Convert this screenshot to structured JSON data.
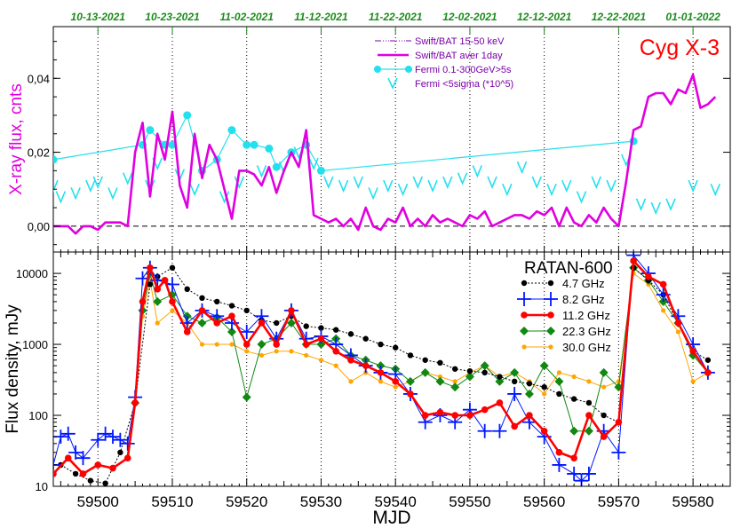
{
  "colors": {
    "bat": "#7a00a8",
    "bat_avg": "#e000e0",
    "fermi": "#22e0ee",
    "ylabel_top": "#e000e0",
    "title": "#ff0000",
    "dates": "#1a8c1a",
    "f47": "#000000",
    "f82": "#0018ff",
    "f112": "#ff0000",
    "f223": "#118811",
    "f300": "#ffa500"
  },
  "chart_data": [
    {
      "type": "scatter",
      "title": "Cyg X-3",
      "ylabel": "X-ray flux, cnts",
      "ylim": [
        -0.007,
        0.054
      ],
      "xlim": [
        59494,
        59585
      ],
      "top_axis_ticks": [
        {
          "x": 59500,
          "label": "10-13-2021"
        },
        {
          "x": 59510,
          "label": "10-23-2021"
        },
        {
          "x": 59520,
          "label": "11-02-2021"
        },
        {
          "x": 59530,
          "label": "11-12-2021"
        },
        {
          "x": 59540,
          "label": "11-22-2021"
        },
        {
          "x": 59550,
          "label": "12-02-2021"
        },
        {
          "x": 59560,
          "label": "12-12-2021"
        },
        {
          "x": 59570,
          "label": "12-22-2021"
        },
        {
          "x": 59580,
          "label": "01-01-2022"
        }
      ],
      "yticks": [
        {
          "v": 0.0,
          "label": "0,00"
        },
        {
          "v": 0.02,
          "label": "0,02"
        },
        {
          "v": 0.04,
          "label": "0,04"
        }
      ],
      "legend": [
        "Swift/BAT 15-50 keV",
        "Swift/BAT aver 1day",
        "Fermi 0.1-300GeV>5s",
        "Fermi <5sigma (*10^5)"
      ],
      "series": [
        {
          "name": "Swift/BAT aver 1day",
          "x": [
            59494,
            59495,
            59496,
            59497,
            59498,
            59499,
            59500,
            59501,
            59502,
            59503,
            59504,
            59505,
            59506,
            59507,
            59508,
            59509,
            59510,
            59511,
            59512,
            59513,
            59514,
            59515,
            59516,
            59517,
            59518,
            59519,
            59520,
            59521,
            59522,
            59523,
            59524,
            59525,
            59526,
            59527,
            59528,
            59529,
            59530,
            59531,
            59532,
            59533,
            59534,
            59535,
            59536,
            59537,
            59538,
            59539,
            59540,
            59541,
            59542,
            59543,
            59544,
            59545,
            59546,
            59547,
            59548,
            59549,
            59550,
            59551,
            59552,
            59553,
            59554,
            59555,
            59556,
            59557,
            59558,
            59559,
            59560,
            59561,
            59562,
            59563,
            59564,
            59565,
            59566,
            59567,
            59568,
            59569,
            59570,
            59571,
            59572,
            59573,
            59574,
            59575,
            59576,
            59577,
            59578,
            59579,
            59580,
            59581,
            59582,
            59583
          ],
          "values": [
            0.0,
            0.0,
            0.0,
            -0.002,
            0.0,
            0.0,
            -0.001,
            0.001,
            0.001,
            0.001,
            0.0,
            0.02,
            0.028,
            0.008,
            0.025,
            0.018,
            0.031,
            0.011,
            0.005,
            0.025,
            0.013,
            0.022,
            0.018,
            0.01,
            0.002,
            0.015,
            0.015,
            0.014,
            0.011,
            0.016,
            0.009,
            0.015,
            0.02,
            0.016,
            0.026,
            0.003,
            0.002,
            0.001,
            0.002,
            0.0,
            0.002,
            -0.001,
            0.005,
            0.0,
            -0.001,
            0.002,
            0.001,
            0.005,
            0.0,
            0.002,
            0.0,
            0.003,
            0.001,
            0.002,
            0.001,
            0.0,
            0.003,
            0.002,
            0.004,
            0.0,
            0.001,
            0.002,
            0.003,
            0.003,
            0.002,
            0.004,
            0.003,
            0.005,
            0.0,
            0.005,
            0.001,
            0.0,
            0.003,
            0.001,
            0.005,
            0.002,
            0.0,
            0.012,
            0.026,
            0.027,
            0.035,
            0.036,
            0.036,
            0.033,
            0.037,
            0.036,
            0.041,
            0.032,
            0.033,
            0.035
          ]
        },
        {
          "name": "Fermi 0.1-300GeV>5s",
          "x": [
            59494,
            59506,
            59507,
            59509,
            59510,
            59512,
            59514,
            59516,
            59518,
            59520,
            59521,
            59523,
            59524,
            59526,
            59528,
            59530,
            59572
          ],
          "values": [
            0.018,
            0.022,
            0.026,
            0.022,
            0.022,
            0.03,
            0.015,
            0.018,
            0.026,
            0.022,
            0.022,
            0.021,
            0.016,
            0.02,
            0.022,
            0.015,
            0.023
          ]
        },
        {
          "name": "Fermi <5sigma (*10^5)",
          "x": [
            59494,
            59495,
            59497,
            59499,
            59500,
            59502,
            59504,
            59507,
            59508,
            59511,
            59513,
            59517,
            59519,
            59522,
            59525,
            59527,
            59529,
            59531,
            59533,
            59535,
            59537,
            59539,
            59541,
            59543,
            59545,
            59547,
            59549,
            59551,
            59553,
            59555,
            59557,
            59559,
            59561,
            59563,
            59565,
            59567,
            59569,
            59571,
            59573,
            59575,
            59577,
            59580,
            59583
          ],
          "values": [
            0.011,
            0.008,
            0.009,
            0.011,
            0.012,
            0.009,
            0.013,
            0.011,
            0.017,
            0.014,
            0.01,
            0.008,
            0.012,
            0.015,
            0.016,
            0.02,
            0.017,
            0.012,
            0.011,
            0.012,
            0.009,
            0.011,
            0.01,
            0.012,
            0.011,
            0.012,
            0.013,
            0.015,
            0.012,
            0.01,
            0.016,
            0.012,
            0.01,
            0.011,
            0.008,
            0.012,
            0.011,
            0.018,
            0.006,
            0.005,
            0.006,
            0.011,
            0.01
          ]
        }
      ]
    },
    {
      "type": "line",
      "title": "RATAN-600",
      "xlabel": "MJD",
      "ylabel": "Flux density, mJy",
      "yscale": "log",
      "ylim": [
        10,
        20000
      ],
      "xlim": [
        59494,
        59585
      ],
      "xticks": [
        59500,
        59510,
        59520,
        59530,
        59540,
        59550,
        59560,
        59570,
        59580
      ],
      "yticks": [
        {
          "v": 10,
          "label": "10"
        },
        {
          "v": 100,
          "label": "100"
        },
        {
          "v": 1000,
          "label": "1000"
        },
        {
          "v": 10000,
          "label": "10000"
        }
      ],
      "legend_position": "top-right",
      "series": [
        {
          "name": "4.7 GHz",
          "x": [
            59495,
            59497,
            59499,
            59501,
            59503,
            59505,
            59507,
            59508,
            59510,
            59512,
            59514,
            59516,
            59518,
            59520,
            59522,
            59524,
            59526,
            59528,
            59530,
            59532,
            59534,
            59536,
            59538,
            59540,
            59542,
            59544,
            59546,
            59548,
            59550,
            59552,
            59554,
            59556,
            59558,
            59560,
            59562,
            59564,
            59566,
            59568,
            59570,
            59572,
            59574,
            59576,
            59578,
            59580,
            59582
          ],
          "values": [
            20,
            15,
            12,
            11,
            30,
            150,
            7000,
            9000,
            12000,
            6000,
            4500,
            4000,
            3500,
            3000,
            2200,
            2000,
            2500,
            1800,
            1700,
            1600,
            1400,
            1200,
            1000,
            900,
            700,
            600,
            550,
            450,
            420,
            400,
            350,
            300,
            280,
            250,
            200,
            170,
            150,
            100,
            80,
            12000,
            8000,
            5000,
            2000,
            800,
            600
          ]
        },
        {
          "name": "8.2 GHz",
          "x": [
            59494,
            59495,
            59496,
            59497,
            59498,
            59500,
            59501,
            59502,
            59503,
            59504,
            59505,
            59506,
            59507,
            59508,
            59510,
            59512,
            59514,
            59516,
            59518,
            59520,
            59522,
            59524,
            59526,
            59528,
            59530,
            59532,
            59534,
            59536,
            59538,
            59540,
            59542,
            59544,
            59546,
            59548,
            59550,
            59552,
            59554,
            59556,
            59558,
            59560,
            59562,
            59564,
            59565,
            59566,
            59568,
            59570,
            59572,
            59574,
            59576,
            59578,
            59580,
            59582
          ],
          "values": [
            20,
            50,
            55,
            30,
            25,
            45,
            55,
            50,
            45,
            40,
            180,
            8500,
            12000,
            8000,
            7000,
            2000,
            3000,
            2500,
            2000,
            1500,
            2500,
            1200,
            3000,
            1200,
            1300,
            1000,
            700,
            500,
            400,
            380,
            200,
            80,
            100,
            80,
            120,
            60,
            60,
            200,
            80,
            50,
            20,
            15,
            12,
            15,
            60,
            30,
            18000,
            10000,
            5000,
            2500,
            1000,
            400
          ]
        },
        {
          "name": "11.2 GHz",
          "x": [
            59494,
            59496,
            59498,
            59500,
            59502,
            59504,
            59505,
            59506,
            59507,
            59508,
            59509,
            59510,
            59512,
            59514,
            59516,
            59518,
            59520,
            59522,
            59524,
            59526,
            59528,
            59530,
            59532,
            59534,
            59536,
            59538,
            59540,
            59542,
            59544,
            59546,
            59548,
            59550,
            59552,
            59554,
            59556,
            59558,
            59560,
            59562,
            59564,
            59566,
            59568,
            59570,
            59572,
            59574,
            59576,
            59578,
            59580,
            59582
          ],
          "values": [
            15,
            25,
            15,
            20,
            18,
            25,
            150,
            4000,
            12000,
            6000,
            8000,
            4000,
            1500,
            3000,
            2000,
            2500,
            1000,
            2000,
            1000,
            3000,
            1000,
            1200,
            800,
            600,
            500,
            400,
            300,
            200,
            100,
            110,
            100,
            100,
            120,
            150,
            70,
            100,
            60,
            30,
            25,
            100,
            50,
            80,
            15000,
            9000,
            7000,
            2000,
            800,
            400
          ]
        },
        {
          "name": "22.3 GHz",
          "x": [
            59494,
            59505,
            59506,
            59507,
            59508,
            59510,
            59512,
            59514,
            59516,
            59518,
            59520,
            59522,
            59524,
            59526,
            59528,
            59530,
            59532,
            59534,
            59536,
            59538,
            59540,
            59542,
            59544,
            59546,
            59548,
            59550,
            59552,
            59554,
            59556,
            59558,
            59560,
            59562,
            59564,
            59566,
            59568,
            59570,
            59572,
            59574,
            59576,
            59578,
            59580,
            59582
          ],
          "values": [
            null,
            150,
            3000,
            10000,
            4000,
            5000,
            2500,
            2000,
            2400,
            1500,
            180,
            1000,
            1200,
            2000,
            1000,
            1000,
            1200,
            700,
            600,
            500,
            450,
            300,
            400,
            300,
            250,
            350,
            500,
            300,
            400,
            200,
            500,
            300,
            60,
            60,
            400,
            250,
            12000,
            8000,
            4000,
            2000,
            700,
            400
          ]
        },
        {
          "name": "30.0 GHz",
          "x": [
            59505,
            59506,
            59507,
            59508,
            59510,
            59512,
            59514,
            59516,
            59518,
            59520,
            59522,
            59524,
            59526,
            59528,
            59530,
            59532,
            59534,
            59536,
            59538,
            59540,
            59542,
            59544,
            59546,
            59548,
            59550,
            59552,
            59554,
            59556,
            59558,
            59560,
            59562,
            59564,
            59566,
            59568,
            59570,
            59572,
            59574,
            59576,
            59578,
            59580,
            59582
          ],
          "values": [
            150,
            2500,
            8000,
            2000,
            3000,
            2000,
            1000,
            1000,
            1000,
            800,
            700,
            800,
            800,
            700,
            600,
            500,
            300,
            400,
            300,
            250,
            300,
            400,
            350,
            300,
            400,
            500,
            350,
            400,
            300,
            200,
            400,
            350,
            300,
            250,
            300,
            10000,
            7000,
            3000,
            1500,
            300,
            400
          ]
        }
      ]
    }
  ]
}
